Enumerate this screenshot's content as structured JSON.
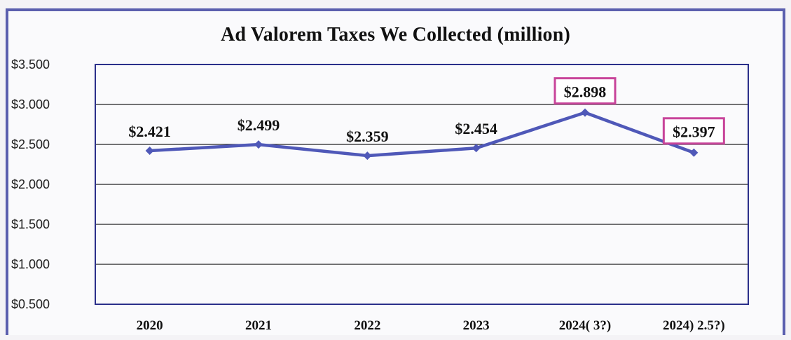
{
  "chart_data": {
    "type": "line",
    "title": "Ad Valorem Taxes We Collected (million)",
    "xlabel": "",
    "ylabel": "",
    "categories": [
      "2020",
      "2021",
      "2022",
      "2023",
      "2024( 3?)",
      "2024)  2.5?)"
    ],
    "series": [
      {
        "values": [
          2.421,
          2.499,
          2.359,
          2.454,
          2.898,
          2.397
        ],
        "color": "#4f58b8"
      }
    ],
    "data_labels": [
      "$2.421",
      "$2.499",
      "$2.359",
      "$2.454",
      "$2.898",
      "$2.397"
    ],
    "highlighted_labels": [
      4,
      5
    ],
    "highlight_color": "#c8449a",
    "y_tick_labels": [
      "$3.500",
      "$3.000",
      "$2.500",
      "$2.000",
      "$1.500",
      "$1.000",
      "$0.500"
    ],
    "ylim": [
      0.5,
      3.5
    ],
    "grid": true,
    "legend": "none",
    "frame_color": "#5b5fae",
    "axis_color": "#2a2f8a"
  }
}
